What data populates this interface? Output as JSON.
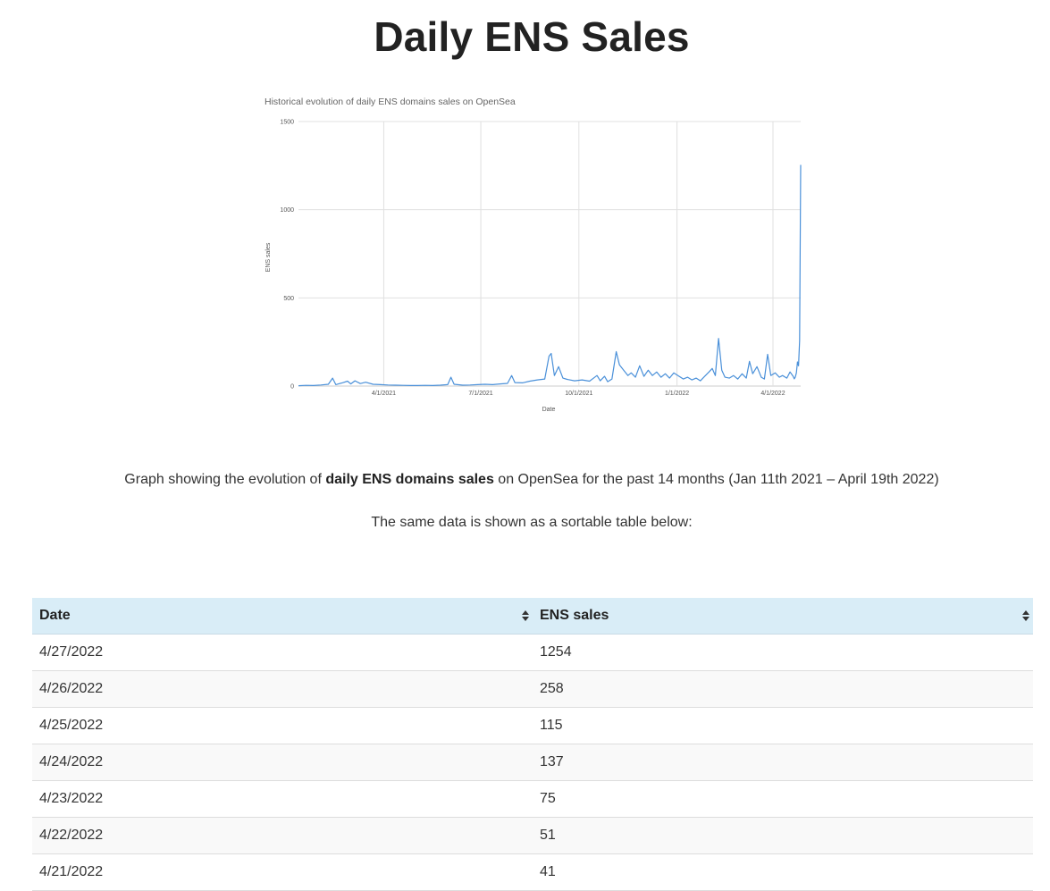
{
  "page": {
    "title": "Daily ENS Sales",
    "caption_before": "Graph showing the evolution of ",
    "caption_bold": "daily ENS domains sales",
    "caption_after": " on OpenSea for the past 14 months (Jan 11th 2021 – April 19th 2022)",
    "subcaption": "The same data is shown as a sortable table below:"
  },
  "colors": {
    "line": "#4a90d9",
    "grid": "#e0e0e0",
    "table_header_bg": "#d9edf7"
  },
  "chart_data": {
    "type": "line",
    "title": "Historical evolution of daily ENS domains sales on OpenSea",
    "xlabel": "Date",
    "ylabel": "ENS sales",
    "xlim": [
      "2021-01-11",
      "2022-04-27"
    ],
    "ylim": [
      0,
      1500
    ],
    "yticks": [
      0,
      500,
      1000,
      1500
    ],
    "xticks": [
      {
        "date": "2021-04-01",
        "label": "4/1/2021"
      },
      {
        "date": "2021-07-01",
        "label": "7/1/2021"
      },
      {
        "date": "2021-10-01",
        "label": "10/1/2021"
      },
      {
        "date": "2022-01-01",
        "label": "1/1/2022"
      },
      {
        "date": "2022-04-01",
        "label": "4/1/2022"
      }
    ],
    "grid": true,
    "legend": "none",
    "series": [
      {
        "points": [
          [
            "2021-01-11",
            2
          ],
          [
            "2021-01-18",
            4
          ],
          [
            "2021-01-25",
            3
          ],
          [
            "2021-02-01",
            6
          ],
          [
            "2021-02-08",
            10
          ],
          [
            "2021-02-12",
            45
          ],
          [
            "2021-02-15",
            8
          ],
          [
            "2021-02-22",
            20
          ],
          [
            "2021-02-26",
            28
          ],
          [
            "2021-03-01",
            12
          ],
          [
            "2021-03-05",
            30
          ],
          [
            "2021-03-10",
            14
          ],
          [
            "2021-03-15",
            22
          ],
          [
            "2021-03-22",
            10
          ],
          [
            "2021-03-29",
            8
          ],
          [
            "2021-04-05",
            6
          ],
          [
            "2021-04-12",
            5
          ],
          [
            "2021-04-19",
            4
          ],
          [
            "2021-04-26",
            3
          ],
          [
            "2021-05-03",
            3
          ],
          [
            "2021-05-10",
            4
          ],
          [
            "2021-05-17",
            3
          ],
          [
            "2021-05-24",
            5
          ],
          [
            "2021-05-31",
            8
          ],
          [
            "2021-06-03",
            50
          ],
          [
            "2021-06-06",
            10
          ],
          [
            "2021-06-14",
            5
          ],
          [
            "2021-06-21",
            6
          ],
          [
            "2021-06-28",
            8
          ],
          [
            "2021-07-05",
            10
          ],
          [
            "2021-07-12",
            8
          ],
          [
            "2021-07-19",
            12
          ],
          [
            "2021-07-26",
            15
          ],
          [
            "2021-07-30",
            60
          ],
          [
            "2021-08-02",
            20
          ],
          [
            "2021-08-09",
            18
          ],
          [
            "2021-08-16",
            28
          ],
          [
            "2021-08-23",
            35
          ],
          [
            "2021-08-30",
            40
          ],
          [
            "2021-09-03",
            170
          ],
          [
            "2021-09-05",
            185
          ],
          [
            "2021-09-08",
            60
          ],
          [
            "2021-09-12",
            110
          ],
          [
            "2021-09-16",
            45
          ],
          [
            "2021-09-20",
            38
          ],
          [
            "2021-09-27",
            30
          ],
          [
            "2021-10-04",
            35
          ],
          [
            "2021-10-11",
            28
          ],
          [
            "2021-10-18",
            60
          ],
          [
            "2021-10-21",
            30
          ],
          [
            "2021-10-25",
            55
          ],
          [
            "2021-10-28",
            25
          ],
          [
            "2021-11-01",
            40
          ],
          [
            "2021-11-05",
            195
          ],
          [
            "2021-11-08",
            120
          ],
          [
            "2021-11-12",
            90
          ],
          [
            "2021-11-16",
            60
          ],
          [
            "2021-11-19",
            75
          ],
          [
            "2021-11-23",
            50
          ],
          [
            "2021-11-27",
            115
          ],
          [
            "2021-12-01",
            55
          ],
          [
            "2021-12-05",
            90
          ],
          [
            "2021-12-09",
            60
          ],
          [
            "2021-12-13",
            80
          ],
          [
            "2021-12-17",
            50
          ],
          [
            "2021-12-21",
            70
          ],
          [
            "2021-12-25",
            45
          ],
          [
            "2021-12-29",
            75
          ],
          [
            "2022-01-03",
            55
          ],
          [
            "2022-01-07",
            40
          ],
          [
            "2022-01-11",
            50
          ],
          [
            "2022-01-15",
            35
          ],
          [
            "2022-01-19",
            45
          ],
          [
            "2022-01-23",
            30
          ],
          [
            "2022-01-27",
            55
          ],
          [
            "2022-01-31",
            80
          ],
          [
            "2022-02-03",
            100
          ],
          [
            "2022-02-06",
            60
          ],
          [
            "2022-02-09",
            270
          ],
          [
            "2022-02-12",
            90
          ],
          [
            "2022-02-15",
            50
          ],
          [
            "2022-02-19",
            45
          ],
          [
            "2022-02-23",
            60
          ],
          [
            "2022-02-27",
            40
          ],
          [
            "2022-03-03",
            70
          ],
          [
            "2022-03-07",
            45
          ],
          [
            "2022-03-10",
            140
          ],
          [
            "2022-03-13",
            70
          ],
          [
            "2022-03-17",
            110
          ],
          [
            "2022-03-21",
            50
          ],
          [
            "2022-03-24",
            40
          ],
          [
            "2022-03-27",
            180
          ],
          [
            "2022-03-30",
            60
          ],
          [
            "2022-04-03",
            75
          ],
          [
            "2022-04-07",
            50
          ],
          [
            "2022-04-10",
            60
          ],
          [
            "2022-04-14",
            45
          ],
          [
            "2022-04-17",
            80
          ],
          [
            "2022-04-20",
            55
          ],
          [
            "2022-04-21",
            41
          ],
          [
            "2022-04-22",
            51
          ],
          [
            "2022-04-23",
            75
          ],
          [
            "2022-04-24",
            137
          ],
          [
            "2022-04-25",
            115
          ],
          [
            "2022-04-26",
            258
          ],
          [
            "2022-04-27",
            1254
          ]
        ]
      }
    ]
  },
  "table": {
    "columns": [
      "Date",
      "ENS sales"
    ],
    "rows": [
      [
        "4/27/2022",
        "1254"
      ],
      [
        "4/26/2022",
        "258"
      ],
      [
        "4/25/2022",
        "115"
      ],
      [
        "4/24/2022",
        "137"
      ],
      [
        "4/23/2022",
        "75"
      ],
      [
        "4/22/2022",
        "51"
      ],
      [
        "4/21/2022",
        "41"
      ]
    ]
  }
}
